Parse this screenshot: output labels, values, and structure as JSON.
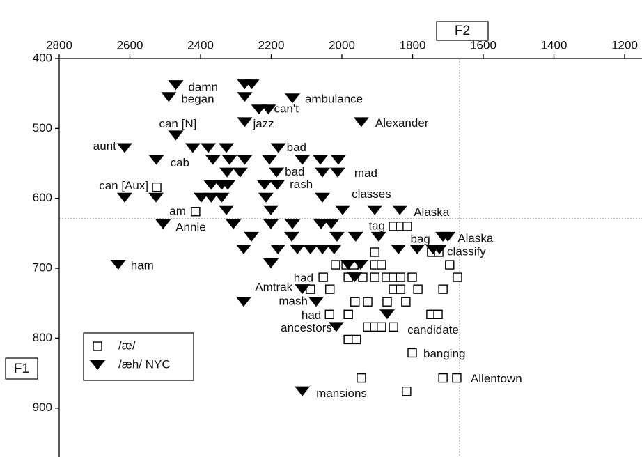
{
  "chart_data": {
    "type": "scatter",
    "x_label": "F2",
    "y_label": "F1",
    "xlim": [
      2800,
      1200
    ],
    "xticks": [
      2800,
      2600,
      2400,
      2200,
      2000,
      1800,
      1600,
      1400,
      1200
    ],
    "ylim": [
      400,
      970
    ],
    "yticks": [
      400,
      500,
      600,
      700,
      800,
      900
    ],
    "xref": 1667,
    "yref": 629,
    "legend": "bottom-left",
    "series": [
      {
        "name": "/æ/",
        "marker": "square",
        "color": "#000000",
        "x": [
          2524,
          2414,
          1854,
          1834,
          1815,
          1907,
          1746,
          1726,
          2018,
          1988,
          1966,
          1907,
          1888,
          1695,
          2053,
          1982,
          1941,
          1907,
          1874,
          1854,
          1834,
          1801,
          1673,
          2089,
          2034,
          1854,
          1834,
          1785,
          1714,
          1963,
          1927,
          1872,
          1819,
          2035,
          1982,
          1748,
          1728,
          1927,
          1907,
          1888,
          1854,
          1982,
          1959,
          1801,
          1714,
          1675,
          1945,
          1817
        ],
        "values": [
          584,
          619,
          640,
          640,
          640,
          677,
          677,
          677,
          695,
          695,
          695,
          695,
          695,
          695,
          713,
          713,
          713,
          713,
          713,
          713,
          713,
          713,
          713,
          730,
          730,
          730,
          730,
          730,
          730,
          748,
          748,
          748,
          748,
          766,
          766,
          766,
          766,
          784,
          784,
          784,
          784,
          802,
          802,
          821,
          857,
          857,
          857,
          876
        ],
        "labels": [
          "can [Aux]",
          "am",
          "tag",
          null,
          null,
          null,
          "bag",
          "classify",
          null,
          null,
          null,
          null,
          null,
          null,
          "had",
          null,
          null,
          null,
          null,
          null,
          null,
          null,
          null,
          null,
          null,
          null,
          null,
          null,
          null,
          null,
          null,
          null,
          null,
          "had",
          null,
          null,
          null,
          null,
          null,
          null,
          "candidate",
          null,
          null,
          "banging",
          null,
          "Allentown",
          null,
          null
        ]
      },
      {
        "name": "/æh/ NYC",
        "marker": "triangle-down",
        "color": "#000000",
        "x": [
          2470,
          2275,
          2255,
          2490,
          2275,
          2140,
          2235,
          2208,
          2275,
          1945,
          2470,
          2615,
          2422,
          2378,
          2327,
          2180,
          2525,
          2365,
          2318,
          2275,
          2205,
          2112,
          2061,
          2010,
          2325,
          2288,
          2185,
          2055,
          2012,
          2370,
          2340,
          2323,
          2219,
          2183,
          2615,
          2526,
          2398,
          2370,
          2340,
          2215,
          2055,
          2327,
          2201,
          1998,
          1907,
          1836,
          2506,
          2307,
          2201,
          2140,
          2059,
          2030,
          2256,
          2142,
          2014,
          1961,
          1896,
          1714,
          1700,
          2278,
          2181,
          2126,
          2089,
          2055,
          2022,
          1840,
          1787,
          1742,
          1724,
          2633,
          2201,
          1982,
          1947,
          1964,
          2112,
          2073,
          2278,
          1872,
          2016,
          2112
        ],
        "values": [
          438,
          437,
          437,
          455,
          455,
          457,
          473,
          473,
          491,
          491,
          510,
          528,
          528,
          528,
          528,
          528,
          545,
          545,
          545,
          545,
          545,
          545,
          545,
          545,
          563,
          563,
          563,
          563,
          563,
          581,
          581,
          581,
          581,
          581,
          599,
          599,
          599,
          599,
          599,
          599,
          599,
          617,
          617,
          617,
          617,
          617,
          637,
          637,
          637,
          637,
          637,
          637,
          655,
          655,
          655,
          655,
          655,
          655,
          655,
          673,
          673,
          673,
          673,
          673,
          673,
          673,
          673,
          673,
          673,
          695,
          693,
          695,
          695,
          713,
          730,
          748,
          748,
          766,
          784,
          876
        ],
        "labels": [
          "damn",
          null,
          null,
          "began",
          null,
          "ambulance",
          null,
          "can't",
          "jazz",
          "Alexander",
          "can [N]",
          "aunt",
          null,
          null,
          null,
          "bad",
          "cab",
          null,
          null,
          null,
          null,
          null,
          null,
          null,
          null,
          null,
          "bad",
          null,
          "mad",
          null,
          null,
          null,
          null,
          "rash",
          null,
          null,
          null,
          null,
          null,
          null,
          "classes",
          null,
          null,
          null,
          null,
          "Alaska",
          "Annie",
          null,
          null,
          null,
          null,
          null,
          null,
          null,
          null,
          null,
          null,
          null,
          "Alaska",
          null,
          null,
          null,
          null,
          null,
          null,
          null,
          null,
          null,
          null,
          "ham",
          null,
          null,
          null,
          null,
          "Amtrak",
          "mash",
          null,
          null,
          "ancestors",
          "mansions"
        ]
      }
    ]
  }
}
